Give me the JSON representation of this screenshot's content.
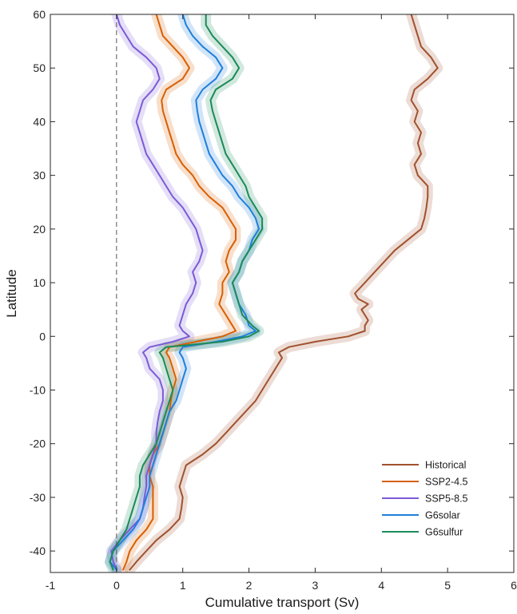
{
  "chart_data": {
    "type": "line",
    "title": "",
    "xlabel": "Cumulative transport (Sv)",
    "ylabel": "Latitude",
    "xlim": [
      -1,
      6
    ],
    "ylim": [
      -44,
      60
    ],
    "xticks": [
      "-1",
      "0",
      "1",
      "2",
      "3",
      "4",
      "5",
      "6"
    ],
    "yticks": [
      "-40",
      "-30",
      "-20",
      "-10",
      "0",
      "10",
      "20",
      "30",
      "40",
      "50",
      "60"
    ],
    "reference_line": {
      "x": 0,
      "style": "dashed"
    },
    "grid": false,
    "legend_position": "bottom-right",
    "shaded_uncertainty_band": true,
    "series": [
      {
        "name": "Historical",
        "color": "#A0522D",
        "y": [
          -43.5,
          -42,
          -40,
          -38,
          -36,
          -34,
          -32,
          -30,
          -28,
          -26,
          -24,
          -22,
          -20,
          -18,
          -16,
          -14,
          -12,
          -10,
          -8,
          -6,
          -4,
          -3,
          -2,
          -1,
          0,
          1,
          2,
          3,
          5,
          6,
          7,
          8,
          10,
          12,
          14,
          16,
          18,
          20,
          22,
          24,
          26,
          28,
          30,
          32,
          34,
          36,
          38,
          40,
          42,
          44,
          46,
          48,
          50,
          52,
          54,
          56,
          58,
          60
        ],
        "x": [
          0.2,
          0.3,
          0.45,
          0.6,
          0.8,
          0.95,
          0.98,
          1.0,
          0.95,
          1.0,
          1.05,
          1.3,
          1.5,
          1.65,
          1.8,
          1.95,
          2.1,
          2.2,
          2.3,
          2.4,
          2.5,
          2.45,
          2.6,
          3.0,
          3.5,
          3.75,
          3.75,
          3.8,
          3.7,
          3.8,
          3.65,
          3.6,
          3.75,
          3.9,
          4.05,
          4.2,
          4.4,
          4.6,
          4.65,
          4.68,
          4.7,
          4.7,
          4.55,
          4.5,
          4.6,
          4.55,
          4.6,
          4.5,
          4.55,
          4.45,
          4.5,
          4.7,
          4.85,
          4.75,
          4.6,
          4.55,
          4.5,
          4.45
        ]
      },
      {
        "name": "SSP2-4.5",
        "color": "#D95F02",
        "y": [
          -43.5,
          -42,
          -40,
          -38,
          -36,
          -34,
          -32,
          -30,
          -28,
          -26,
          -24,
          -22,
          -20,
          -18,
          -16,
          -14,
          -12,
          -10,
          -8,
          -6,
          -4,
          -3,
          -2,
          -1,
          0,
          1,
          2,
          4,
          6,
          8,
          10,
          12,
          14,
          16,
          18,
          20,
          22,
          24,
          26,
          28,
          30,
          32,
          34,
          36,
          38,
          40,
          42,
          44,
          46,
          48,
          50,
          52,
          54,
          56,
          58,
          60
        ],
        "x": [
          0.1,
          0.15,
          0.2,
          0.3,
          0.45,
          0.55,
          0.55,
          0.55,
          0.55,
          0.5,
          0.5,
          0.55,
          0.65,
          0.7,
          0.75,
          0.8,
          0.82,
          0.85,
          0.9,
          0.85,
          0.8,
          0.75,
          0.8,
          1.2,
          1.6,
          1.8,
          1.75,
          1.65,
          1.55,
          1.6,
          1.6,
          1.7,
          1.65,
          1.7,
          1.8,
          1.8,
          1.7,
          1.6,
          1.4,
          1.25,
          1.15,
          1.0,
          0.9,
          0.85,
          0.8,
          0.75,
          0.7,
          0.68,
          0.75,
          1.0,
          1.1,
          1.0,
          0.85,
          0.7,
          0.65,
          0.6
        ]
      },
      {
        "name": "SSP5-8.5",
        "color": "#7B5BD6",
        "y": [
          -43.5,
          -42,
          -40,
          -38,
          -36,
          -34,
          -32,
          -30,
          -28,
          -26,
          -24,
          -22,
          -20,
          -18,
          -16,
          -14,
          -12,
          -10,
          -8,
          -6,
          -4,
          -3,
          -2,
          -1,
          0,
          1,
          2,
          4,
          6,
          8,
          10,
          12,
          14,
          16,
          18,
          20,
          22,
          24,
          26,
          28,
          30,
          32,
          34,
          36,
          38,
          40,
          42,
          44,
          46,
          48,
          50,
          52,
          54,
          56,
          58,
          60
        ],
        "x": [
          0.0,
          -0.05,
          -0.08,
          0.05,
          0.2,
          0.35,
          0.4,
          0.42,
          0.45,
          0.45,
          0.5,
          0.55,
          0.6,
          0.6,
          0.62,
          0.65,
          0.7,
          0.7,
          0.65,
          0.5,
          0.45,
          0.4,
          0.5,
          0.85,
          1.1,
          1.0,
          0.95,
          1.0,
          1.05,
          1.15,
          1.2,
          1.15,
          1.25,
          1.3,
          1.25,
          1.2,
          1.1,
          1.0,
          0.85,
          0.75,
          0.65,
          0.55,
          0.45,
          0.4,
          0.35,
          0.3,
          0.35,
          0.4,
          0.55,
          0.65,
          0.6,
          0.45,
          0.25,
          0.15,
          0.05,
          0.0
        ]
      },
      {
        "name": "G6solar",
        "color": "#1F7FDB",
        "y": [
          -43.5,
          -42,
          -40,
          -38,
          -36,
          -34,
          -32,
          -30,
          -28,
          -26,
          -24,
          -22,
          -20,
          -18,
          -16,
          -14,
          -12,
          -10,
          -8,
          -6,
          -4,
          -3,
          -2,
          -1,
          0,
          1,
          2,
          4,
          6,
          8,
          10,
          12,
          14,
          16,
          18,
          20,
          22,
          24,
          26,
          28,
          30,
          32,
          34,
          36,
          38,
          40,
          42,
          44,
          46,
          48,
          50,
          52,
          54,
          56,
          58,
          60
        ],
        "x": [
          0.0,
          -0.1,
          -0.05,
          0.1,
          0.25,
          0.35,
          0.4,
          0.45,
          0.5,
          0.5,
          0.55,
          0.6,
          0.65,
          0.7,
          0.75,
          0.8,
          0.9,
          0.95,
          1.0,
          1.05,
          1.0,
          0.95,
          1.0,
          1.5,
          1.9,
          2.1,
          2.0,
          1.95,
          1.85,
          1.8,
          1.75,
          1.85,
          1.9,
          2.0,
          2.05,
          2.15,
          2.1,
          2.0,
          1.85,
          1.75,
          1.6,
          1.5,
          1.4,
          1.35,
          1.3,
          1.25,
          1.22,
          1.2,
          1.3,
          1.5,
          1.6,
          1.5,
          1.3,
          1.15,
          1.05,
          1.0
        ]
      },
      {
        "name": "G6sulfur",
        "color": "#1B8A5A",
        "y": [
          -43.5,
          -42,
          -40,
          -38,
          -36,
          -34,
          -32,
          -30,
          -28,
          -26,
          -24,
          -22,
          -20,
          -18,
          -16,
          -14,
          -12,
          -10,
          -8,
          -6,
          -4,
          -3,
          -2,
          -1,
          0,
          1,
          2,
          4,
          6,
          8,
          10,
          12,
          14,
          16,
          18,
          20,
          22,
          24,
          26,
          28,
          30,
          32,
          34,
          36,
          38,
          40,
          42,
          44,
          46,
          48,
          50,
          52,
          54,
          56,
          58,
          60
        ],
        "x": [
          -0.05,
          -0.1,
          -0.05,
          0.05,
          0.15,
          0.2,
          0.25,
          0.3,
          0.35,
          0.35,
          0.4,
          0.5,
          0.6,
          0.65,
          0.7,
          0.75,
          0.8,
          0.85,
          0.8,
          0.75,
          0.7,
          0.65,
          0.75,
          1.6,
          2.0,
          2.15,
          2.05,
          1.9,
          1.85,
          1.8,
          1.75,
          1.85,
          1.9,
          2.0,
          2.1,
          2.2,
          2.2,
          2.1,
          2.0,
          1.95,
          1.85,
          1.75,
          1.65,
          1.6,
          1.55,
          1.5,
          1.45,
          1.42,
          1.5,
          1.75,
          1.85,
          1.75,
          1.6,
          1.45,
          1.35,
          1.35
        ]
      }
    ]
  }
}
